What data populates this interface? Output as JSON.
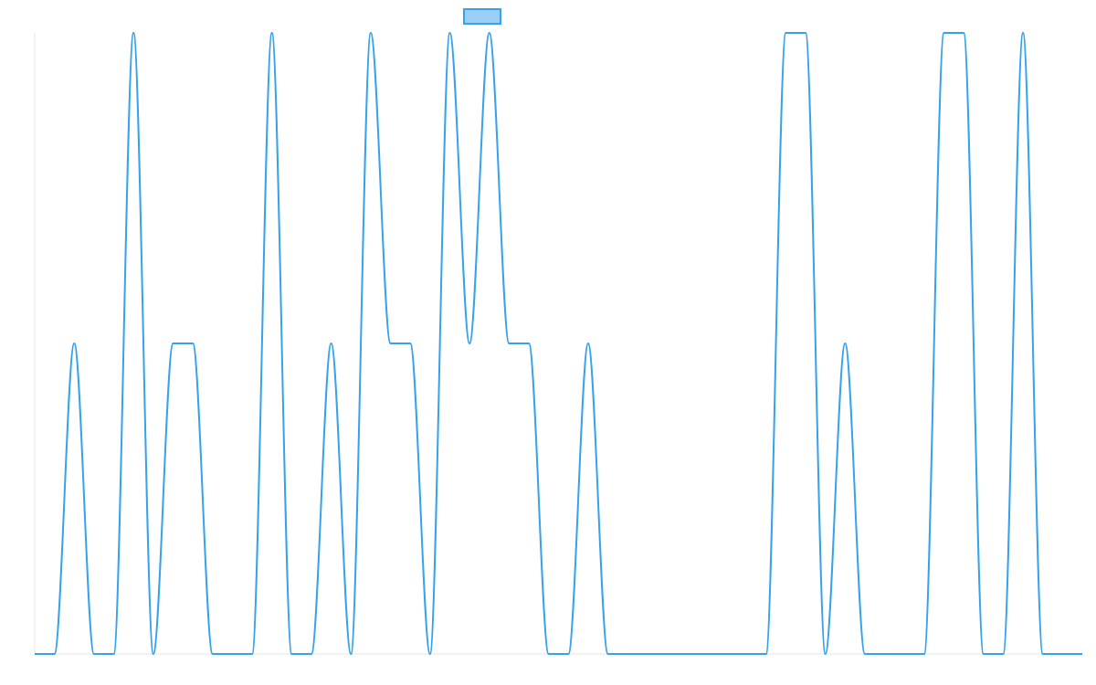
{
  "chart_data": {
    "type": "line",
    "title": "",
    "xlabel": "",
    "ylabel": "",
    "x": [
      0,
      1,
      2,
      3,
      4,
      5,
      6,
      7,
      8,
      9,
      10,
      11,
      12,
      13,
      14,
      15,
      16,
      17,
      18,
      19,
      20,
      21,
      22,
      23,
      24,
      25,
      26,
      27,
      28,
      29,
      30,
      31,
      32,
      33,
      34,
      35,
      36,
      37,
      38,
      39,
      40,
      41,
      42,
      43,
      44,
      45,
      46,
      47,
      48,
      49,
      50,
      51,
      52,
      53
    ],
    "series": [
      {
        "name": "",
        "color": "#36A2EB",
        "fill": "#9AD0F5",
        "values": [
          0,
          0,
          1,
          0,
          0,
          2,
          0,
          1,
          1,
          0,
          0,
          0,
          2,
          0,
          0,
          1,
          0,
          2,
          1,
          1,
          0,
          2,
          1,
          2,
          1,
          1,
          0,
          0,
          1,
          0,
          0,
          0,
          0,
          0,
          0,
          0,
          0,
          0,
          2,
          2,
          0,
          1,
          0,
          0,
          0,
          0,
          2,
          2,
          0,
          0,
          2,
          0,
          0,
          0
        ]
      }
    ],
    "ylim": [
      0,
      2
    ],
    "xlim": [
      0,
      53
    ],
    "grid": false,
    "legend": "top"
  }
}
